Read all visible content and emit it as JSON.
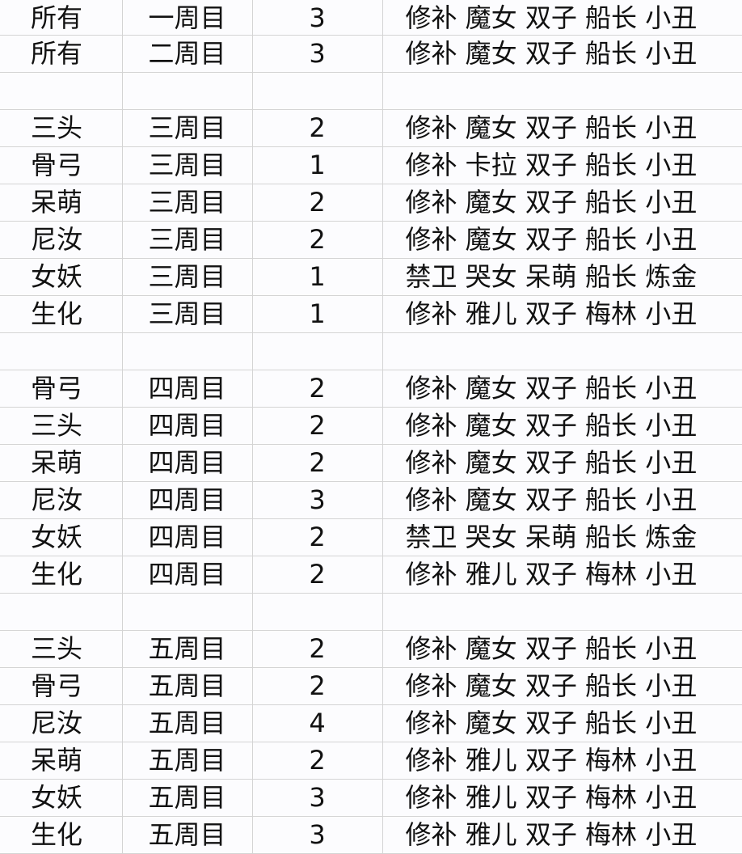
{
  "rows": [
    {
      "hero": "所有",
      "week": "一周目",
      "count": "3",
      "team": "修补 魔女 双子 船长 小丑"
    },
    {
      "hero": "所有",
      "week": "二周目",
      "count": "3",
      "team": "修补 魔女 双子 船长 小丑"
    },
    {
      "hero": "",
      "week": "",
      "count": "",
      "team": ""
    },
    {
      "hero": "三头",
      "week": "三周目",
      "count": "2",
      "team": "修补 魔女 双子 船长 小丑"
    },
    {
      "hero": "骨弓",
      "week": "三周目",
      "count": "1",
      "team": "修补 卡拉 双子 船长 小丑"
    },
    {
      "hero": "呆萌",
      "week": "三周目",
      "count": "2",
      "team": "修补 魔女 双子 船长 小丑"
    },
    {
      "hero": "尼汝",
      "week": "三周目",
      "count": "2",
      "team": "修补 魔女 双子 船长 小丑"
    },
    {
      "hero": "女妖",
      "week": "三周目",
      "count": "1",
      "team": "禁卫 哭女 呆萌 船长 炼金"
    },
    {
      "hero": "生化",
      "week": "三周目",
      "count": "1",
      "team": "修补 雅儿 双子 梅林 小丑"
    },
    {
      "hero": "",
      "week": "",
      "count": "",
      "team": ""
    },
    {
      "hero": "骨弓",
      "week": "四周目",
      "count": "2",
      "team": "修补 魔女 双子 船长 小丑"
    },
    {
      "hero": "三头",
      "week": "四周目",
      "count": "2",
      "team": "修补 魔女 双子 船长 小丑"
    },
    {
      "hero": "呆萌",
      "week": "四周目",
      "count": "2",
      "team": "修补 魔女 双子 船长 小丑"
    },
    {
      "hero": "尼汝",
      "week": "四周目",
      "count": "3",
      "team": "修补 魔女 双子 船长 小丑"
    },
    {
      "hero": "女妖",
      "week": "四周目",
      "count": "2",
      "team": "禁卫 哭女 呆萌 船长 炼金"
    },
    {
      "hero": "生化",
      "week": "四周目",
      "count": "2",
      "team": "修补 雅儿 双子 梅林 小丑"
    },
    {
      "hero": "",
      "week": "",
      "count": "",
      "team": ""
    },
    {
      "hero": "三头",
      "week": "五周目",
      "count": "2",
      "team": "修补 魔女 双子 船长 小丑"
    },
    {
      "hero": "骨弓",
      "week": "五周目",
      "count": "2",
      "team": "修补 魔女 双子 船长 小丑"
    },
    {
      "hero": "尼汝",
      "week": "五周目",
      "count": "4",
      "team": "修补 魔女 双子 船长 小丑"
    },
    {
      "hero": "呆萌",
      "week": "五周目",
      "count": "2",
      "team": "修补 雅儿 双子 梅林 小丑"
    },
    {
      "hero": "女妖",
      "week": "五周目",
      "count": "3",
      "team": "修补 雅儿 双子 梅林 小丑"
    },
    {
      "hero": "生化",
      "week": "五周目",
      "count": "3",
      "team": "修补 雅儿 双子 梅林 小丑"
    }
  ]
}
